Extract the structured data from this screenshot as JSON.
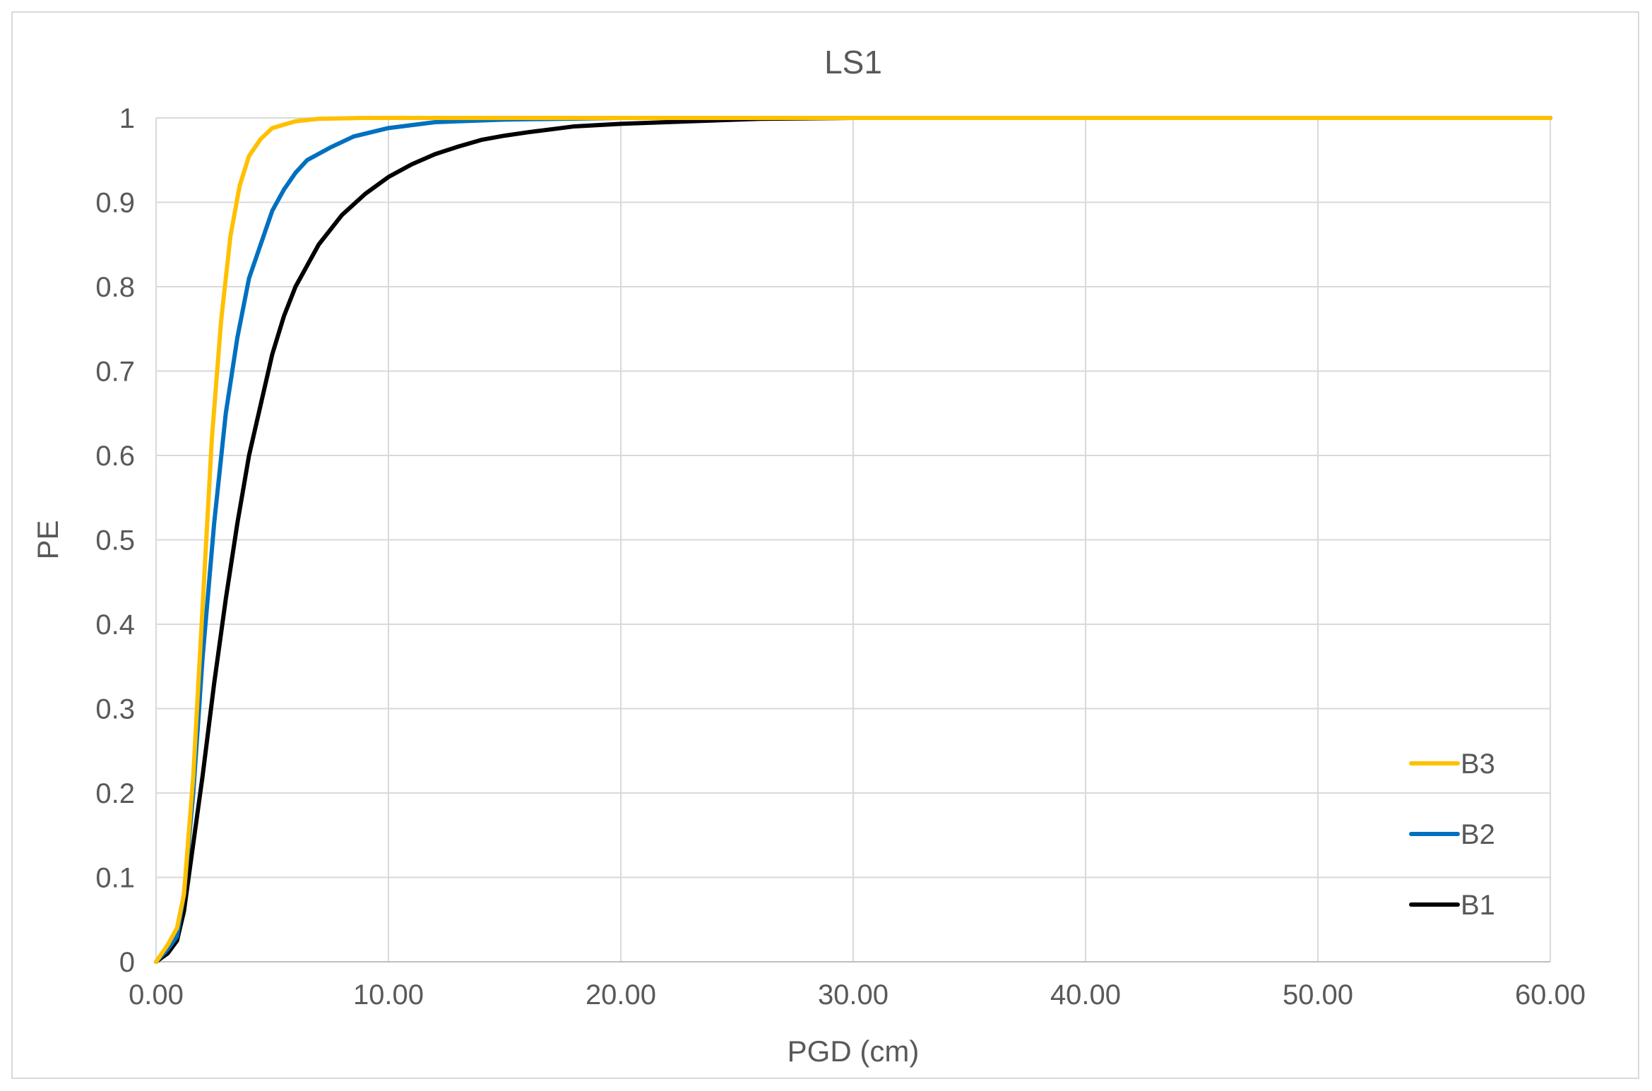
{
  "chart_data": {
    "type": "line",
    "title": "LS1",
    "xlabel": "PGD (cm)",
    "ylabel": "PE",
    "xlim": [
      0,
      60
    ],
    "ylim": [
      0,
      1
    ],
    "grid": true,
    "legend_position": "bottom-right",
    "x_ticks": [
      "0.00",
      "10.00",
      "20.00",
      "30.00",
      "40.00",
      "50.00",
      "60.00"
    ],
    "y_ticks": [
      "0",
      "0.1",
      "0.2",
      "0.3",
      "0.4",
      "0.5",
      "0.6",
      "0.7",
      "0.8",
      "0.9",
      "1"
    ],
    "series": [
      {
        "name": "B3",
        "color": "#ffc000",
        "points": [
          [
            0,
            0
          ],
          [
            0.5,
            0.02
          ],
          [
            0.9,
            0.04
          ],
          [
            1.2,
            0.08
          ],
          [
            1.6,
            0.22
          ],
          [
            2.0,
            0.42
          ],
          [
            2.4,
            0.62
          ],
          [
            2.8,
            0.76
          ],
          [
            3.2,
            0.86
          ],
          [
            3.6,
            0.92
          ],
          [
            4.0,
            0.955
          ],
          [
            4.5,
            0.975
          ],
          [
            5.0,
            0.988
          ],
          [
            6.0,
            0.996
          ],
          [
            7.0,
            0.999
          ],
          [
            9.0,
            1.0
          ],
          [
            60,
            1.0
          ]
        ]
      },
      {
        "name": "B2",
        "color": "#0070c0",
        "points": [
          [
            0,
            0
          ],
          [
            0.5,
            0.015
          ],
          [
            0.9,
            0.03
          ],
          [
            1.2,
            0.08
          ],
          [
            1.6,
            0.2
          ],
          [
            2.0,
            0.36
          ],
          [
            2.5,
            0.52
          ],
          [
            3.0,
            0.65
          ],
          [
            3.5,
            0.74
          ],
          [
            4.0,
            0.81
          ],
          [
            4.5,
            0.85
          ],
          [
            5.0,
            0.89
          ],
          [
            5.5,
            0.915
          ],
          [
            6.0,
            0.935
          ],
          [
            6.5,
            0.95
          ],
          [
            7.5,
            0.965
          ],
          [
            8.5,
            0.978
          ],
          [
            10.0,
            0.988
          ],
          [
            12.0,
            0.995
          ],
          [
            15.0,
            0.998
          ],
          [
            20.0,
            1.0
          ],
          [
            60,
            1.0
          ]
        ]
      },
      {
        "name": "B1",
        "color": "#000000",
        "points": [
          [
            0,
            0
          ],
          [
            0.5,
            0.01
          ],
          [
            0.9,
            0.025
          ],
          [
            1.2,
            0.06
          ],
          [
            1.6,
            0.14
          ],
          [
            2.0,
            0.22
          ],
          [
            2.5,
            0.33
          ],
          [
            3.0,
            0.43
          ],
          [
            3.5,
            0.52
          ],
          [
            4.0,
            0.6
          ],
          [
            4.5,
            0.66
          ],
          [
            5.0,
            0.72
          ],
          [
            5.5,
            0.765
          ],
          [
            6.0,
            0.8
          ],
          [
            7.0,
            0.85
          ],
          [
            8.0,
            0.885
          ],
          [
            9.0,
            0.91
          ],
          [
            10.0,
            0.93
          ],
          [
            11.0,
            0.945
          ],
          [
            12.0,
            0.957
          ],
          [
            13.0,
            0.966
          ],
          [
            14.0,
            0.974
          ],
          [
            15.0,
            0.979
          ],
          [
            16.0,
            0.983
          ],
          [
            18.0,
            0.99
          ],
          [
            20.0,
            0.993
          ],
          [
            23.0,
            0.996
          ],
          [
            26.0,
            0.999
          ],
          [
            30.0,
            1.0
          ],
          [
            60,
            1.0
          ]
        ]
      }
    ]
  }
}
